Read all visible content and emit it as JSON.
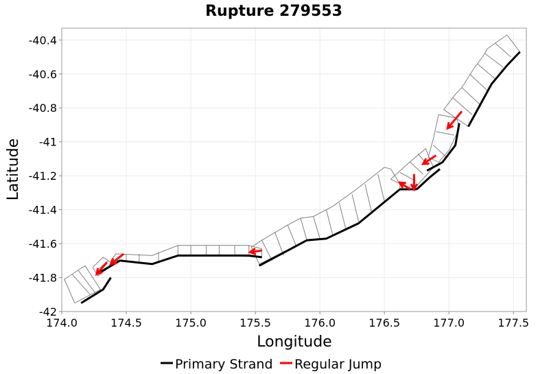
{
  "chart_data": {
    "type": "line",
    "title": "Rupture 279553",
    "xlabel": "Longitude",
    "ylabel": "Latitude",
    "xlim": [
      174.0,
      177.6
    ],
    "ylim": [
      -42.0,
      -40.33
    ],
    "xticks": [
      174.0,
      174.5,
      175.0,
      175.5,
      176.0,
      176.5,
      177.0,
      177.5
    ],
    "yticks": [
      -42.0,
      -41.8,
      -41.6,
      -41.4,
      -41.2,
      -41.0,
      -40.8,
      -40.6,
      -40.4
    ],
    "grid": true,
    "legend": {
      "placement": "bottom",
      "entries": [
        {
          "label": "Primary Strand",
          "color": "#000000"
        },
        {
          "label": "Regular Jump",
          "color": "#ff0000"
        }
      ]
    },
    "series": [
      {
        "name": "Primary Strand",
        "color": "#000000",
        "segments": [
          [
            [
              174.15,
              -41.95
            ],
            [
              174.32,
              -41.87
            ],
            [
              174.38,
              -41.8
            ]
          ],
          [
            [
              174.27,
              -41.78
            ],
            [
              174.45,
              -41.7
            ],
            [
              174.7,
              -41.72
            ],
            [
              174.9,
              -41.67
            ],
            [
              175.3,
              -41.67
            ],
            [
              175.45,
              -41.67
            ],
            [
              175.55,
              -41.68
            ]
          ],
          [
            [
              175.53,
              -41.73
            ],
            [
              175.9,
              -41.58
            ],
            [
              176.05,
              -41.57
            ],
            [
              176.3,
              -41.48
            ],
            [
              176.62,
              -41.28
            ],
            [
              176.75,
              -41.28
            ]
          ],
          [
            [
              176.75,
              -41.28
            ],
            [
              176.85,
              -41.21
            ],
            [
              176.93,
              -41.16
            ]
          ],
          [
            [
              176.83,
              -41.17
            ],
            [
              176.95,
              -41.12
            ],
            [
              177.05,
              -41.02
            ],
            [
              177.08,
              -40.89
            ]
          ],
          [
            [
              177.15,
              -40.91
            ],
            [
              177.33,
              -40.66
            ],
            [
              177.45,
              -40.55
            ],
            [
              177.55,
              -40.47
            ]
          ]
        ]
      }
    ],
    "jumps": [
      {
        "from": [
          174.35,
          -41.71
        ],
        "to": [
          174.27,
          -41.78
        ]
      },
      {
        "from": [
          174.48,
          -41.66
        ],
        "to": [
          174.38,
          -41.72
        ]
      },
      {
        "from": [
          175.55,
          -41.64
        ],
        "to": [
          175.46,
          -41.65
        ]
      },
      {
        "from": [
          176.7,
          -41.28
        ],
        "to": [
          176.62,
          -41.24
        ]
      },
      {
        "from": [
          176.73,
          -41.19
        ],
        "to": [
          176.73,
          -41.28
        ]
      },
      {
        "from": [
          176.9,
          -41.08
        ],
        "to": [
          176.8,
          -41.13
        ]
      },
      {
        "from": [
          177.1,
          -40.82
        ],
        "to": [
          176.99,
          -40.92
        ]
      }
    ],
    "fault_sections": [
      {
        "outline": [
          [
            174.1,
            -41.95
          ],
          [
            174.02,
            -41.81
          ],
          [
            174.18,
            -41.73
          ],
          [
            174.3,
            -41.87
          ]
        ],
        "dividers": [
          [
            [
              174.08,
              -41.78
            ],
            [
              174.22,
              -41.9
            ]
          ],
          [
            [
              174.13,
              -41.76
            ],
            [
              174.26,
              -41.89
            ]
          ]
        ]
      },
      {
        "outline": [
          [
            174.28,
            -41.79
          ],
          [
            174.24,
            -41.74
          ],
          [
            174.32,
            -41.68
          ],
          [
            174.4,
            -41.72
          ]
        ],
        "dividers": [
          [
            [
              174.27,
              -41.76
            ],
            [
              174.36,
              -41.7
            ]
          ]
        ]
      },
      {
        "outline": [
          [
            174.38,
            -41.7
          ],
          [
            174.42,
            -41.66
          ],
          [
            174.7,
            -41.67
          ],
          [
            174.9,
            -41.61
          ],
          [
            175.45,
            -41.61
          ],
          [
            175.55,
            -41.63
          ],
          [
            175.55,
            -41.68
          ],
          [
            175.3,
            -41.67
          ],
          [
            174.9,
            -41.67
          ],
          [
            174.7,
            -41.72
          ],
          [
            174.45,
            -41.7
          ]
        ],
        "dividers": [
          [
            [
              174.5,
              -41.66
            ],
            [
              174.5,
              -41.7
            ]
          ],
          [
            [
              174.6,
              -41.66
            ],
            [
              174.6,
              -41.71
            ]
          ],
          [
            [
              174.75,
              -41.65
            ],
            [
              174.75,
              -41.71
            ]
          ],
          [
            [
              174.9,
              -41.61
            ],
            [
              174.9,
              -41.67
            ]
          ],
          [
            [
              175.0,
              -41.61
            ],
            [
              175.0,
              -41.67
            ]
          ],
          [
            [
              175.12,
              -41.61
            ],
            [
              175.12,
              -41.67
            ]
          ],
          [
            [
              175.22,
              -41.61
            ],
            [
              175.22,
              -41.67
            ]
          ],
          [
            [
              175.34,
              -41.61
            ],
            [
              175.34,
              -41.67
            ]
          ],
          [
            [
              175.45,
              -41.61
            ],
            [
              175.45,
              -41.67
            ]
          ]
        ]
      },
      {
        "outline": [
          [
            175.47,
            -41.62
          ],
          [
            175.55,
            -41.58
          ],
          [
            175.75,
            -41.49
          ],
          [
            175.85,
            -41.45
          ],
          [
            175.95,
            -41.44
          ],
          [
            176.1,
            -41.38
          ],
          [
            176.3,
            -41.27
          ],
          [
            176.5,
            -41.15
          ],
          [
            176.55,
            -41.16
          ],
          [
            176.62,
            -41.25
          ],
          [
            176.62,
            -41.28
          ],
          [
            176.3,
            -41.48
          ],
          [
            176.05,
            -41.57
          ],
          [
            175.9,
            -41.58
          ],
          [
            175.53,
            -41.72
          ]
        ],
        "dividers": [
          [
            [
              175.55,
              -41.58
            ],
            [
              175.63,
              -41.7
            ]
          ],
          [
            [
              175.65,
              -41.53
            ],
            [
              175.72,
              -41.67
            ]
          ],
          [
            [
              175.75,
              -41.49
            ],
            [
              175.82,
              -41.62
            ]
          ],
          [
            [
              175.85,
              -41.45
            ],
            [
              175.9,
              -41.58
            ]
          ],
          [
            [
              175.95,
              -41.44
            ],
            [
              176.0,
              -41.57
            ]
          ],
          [
            [
              176.05,
              -41.4
            ],
            [
              176.1,
              -41.55
            ]
          ],
          [
            [
              176.15,
              -41.36
            ],
            [
              176.2,
              -41.51
            ]
          ],
          [
            [
              176.25,
              -41.31
            ],
            [
              176.3,
              -41.47
            ]
          ],
          [
            [
              176.35,
              -41.25
            ],
            [
              176.4,
              -41.41
            ]
          ],
          [
            [
              176.45,
              -41.19
            ],
            [
              176.5,
              -41.35
            ]
          ]
        ]
      },
      {
        "outline": [
          [
            176.55,
            -41.22
          ],
          [
            176.68,
            -41.13
          ],
          [
            176.82,
            -41.04
          ],
          [
            176.85,
            -41.1
          ],
          [
            176.88,
            -41.15
          ],
          [
            176.75,
            -41.26
          ],
          [
            176.68,
            -41.27
          ]
        ],
        "dividers": [
          [
            [
              176.62,
              -41.18
            ],
            [
              176.74,
              -41.23
            ]
          ],
          [
            [
              176.7,
              -41.12
            ],
            [
              176.8,
              -41.19
            ]
          ],
          [
            [
              176.76,
              -41.07
            ],
            [
              176.84,
              -41.14
            ]
          ]
        ]
      },
      {
        "outline": [
          [
            176.84,
            -41.09
          ],
          [
            176.88,
            -40.98
          ],
          [
            176.92,
            -40.84
          ],
          [
            177.06,
            -40.86
          ],
          [
            177.08,
            -40.92
          ],
          [
            177.0,
            -41.05
          ],
          [
            176.92,
            -41.12
          ]
        ],
        "dividers": [
          [
            [
              176.88,
              -41.02
            ],
            [
              176.98,
              -41.09
            ]
          ],
          [
            [
              176.9,
              -40.94
            ],
            [
              177.04,
              -40.96
            ]
          ]
        ]
      },
      {
        "outline": [
          [
            176.96,
            -40.81
          ],
          [
            177.05,
            -40.72
          ],
          [
            177.1,
            -40.68
          ],
          [
            177.2,
            -40.56
          ],
          [
            177.26,
            -40.5
          ],
          [
            177.3,
            -40.45
          ],
          [
            177.45,
            -40.37
          ],
          [
            177.52,
            -40.44
          ],
          [
            177.55,
            -40.47
          ],
          [
            177.45,
            -40.55
          ],
          [
            177.33,
            -40.66
          ],
          [
            177.15,
            -40.91
          ]
        ],
        "dividers": [
          [
            [
              177.03,
              -40.74
            ],
            [
              177.18,
              -40.84
            ]
          ],
          [
            [
              177.1,
              -40.68
            ],
            [
              177.24,
              -40.78
            ]
          ],
          [
            [
              177.16,
              -40.6
            ],
            [
              177.3,
              -40.7
            ]
          ],
          [
            [
              177.22,
              -40.54
            ],
            [
              177.36,
              -40.63
            ]
          ],
          [
            [
              177.28,
              -40.48
            ],
            [
              177.42,
              -40.56
            ]
          ],
          [
            [
              177.36,
              -40.42
            ],
            [
              177.48,
              -40.5
            ]
          ]
        ]
      }
    ]
  }
}
